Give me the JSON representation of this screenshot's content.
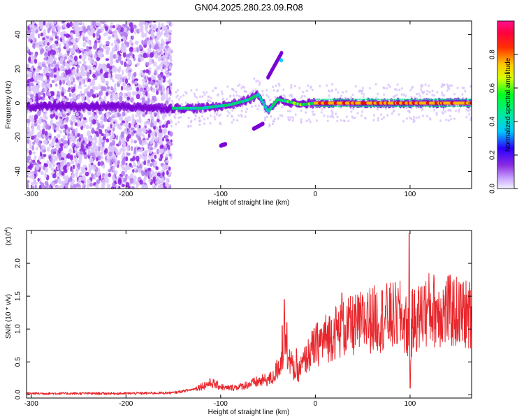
{
  "title": "GN04.2025.280.23.09.R08",
  "colors": {
    "snr_line": "#e8262b",
    "spec_dark": "#7a00d6",
    "spec_ridge": "#00d65a",
    "spec_peak": "#e01010"
  },
  "chart_data": [
    {
      "type": "heatmap",
      "name": "spectrogram",
      "xlabel": "Height of straight line (km)",
      "ylabel": "Frequency (Hz)",
      "xlim": [
        -305,
        165
      ],
      "ylim": [
        -50,
        48
      ],
      "xticks": [
        -300,
        -200,
        -100,
        0,
        100
      ],
      "yticks": [
        -40,
        -20,
        0,
        20,
        40
      ],
      "grid": false,
      "colorbar": {
        "label": "Normalized spectral amplitude",
        "ticks": [
          "0.0",
          "0.2",
          "0.4",
          "0.6",
          "0.8"
        ],
        "range": [
          0,
          1
        ],
        "colormap": "rainbow"
      },
      "ridge": [
        {
          "x": -305,
          "y": -2
        },
        {
          "x": -250,
          "y": -2
        },
        {
          "x": -200,
          "y": -2
        },
        {
          "x": -155,
          "y": -3
        },
        {
          "x": -120,
          "y": -3
        },
        {
          "x": -90,
          "y": -1
        },
        {
          "x": -70,
          "y": 2
        },
        {
          "x": -60,
          "y": 5
        },
        {
          "x": -50,
          "y": -5
        },
        {
          "x": -40,
          "y": 2
        },
        {
          "x": -30,
          "y": 1
        },
        {
          "x": -15,
          "y": -1
        },
        {
          "x": 0,
          "y": 0
        },
        {
          "x": 50,
          "y": 0
        },
        {
          "x": 100,
          "y": 0
        },
        {
          "x": 165,
          "y": 0
        }
      ],
      "side_branches": [
        [
          {
            "x": -50,
            "y": 15
          },
          {
            "x": -35,
            "y": 30
          }
        ],
        [
          {
            "x": -65,
            "y": -15
          },
          {
            "x": -55,
            "y": -12
          }
        ],
        [
          {
            "x": -95,
            "y": -24
          },
          {
            "x": -100,
            "y": -25
          }
        ]
      ]
    },
    {
      "type": "line",
      "name": "snr",
      "xlabel": "Height of straight line (km)",
      "ylabel": "SNR (10 * v/v)",
      "yscale_label": "(x10",
      "yscale_exp": "4",
      "yscale_close": ")",
      "xlim": [
        -305,
        165
      ],
      "ylim": [
        -0.05,
        2.5
      ],
      "xticks": [
        -300,
        -200,
        -100,
        0,
        100
      ],
      "yticks": [
        "0.0",
        "0.5",
        "1.0",
        "1.5",
        "2.0"
      ],
      "grid": false,
      "envelope": [
        {
          "x": -305,
          "y": 0.02
        },
        {
          "x": -200,
          "y": 0.02
        },
        {
          "x": -150,
          "y": 0.03
        },
        {
          "x": -130,
          "y": 0.08
        },
        {
          "x": -110,
          "y": 0.18
        },
        {
          "x": -95,
          "y": 0.1
        },
        {
          "x": -80,
          "y": 0.12
        },
        {
          "x": -60,
          "y": 0.2
        },
        {
          "x": -45,
          "y": 0.25
        },
        {
          "x": -35,
          "y": 0.55
        },
        {
          "x": -32,
          "y": 0.9
        },
        {
          "x": -28,
          "y": 0.55
        },
        {
          "x": -20,
          "y": 0.3
        },
        {
          "x": -10,
          "y": 0.55
        },
        {
          "x": 0,
          "y": 0.75
        },
        {
          "x": 20,
          "y": 0.95
        },
        {
          "x": 40,
          "y": 1.05
        },
        {
          "x": 60,
          "y": 1.15
        },
        {
          "x": 90,
          "y": 1.2
        },
        {
          "x": 98,
          "y": 1.0
        },
        {
          "x": 100,
          "y": 0.4
        },
        {
          "x": 102,
          "y": 1.1
        },
        {
          "x": 120,
          "y": 1.3
        },
        {
          "x": 150,
          "y": 1.25
        },
        {
          "x": 165,
          "y": 1.2
        }
      ],
      "spikes": [
        {
          "x": -35,
          "y": 1.05
        },
        {
          "x": -33,
          "y": 1.45
        },
        {
          "x": -30,
          "y": 1.1
        },
        {
          "x": -20,
          "y": 0.7
        },
        {
          "x": 10,
          "y": 1.1
        },
        {
          "x": 28,
          "y": 1.55
        },
        {
          "x": 55,
          "y": 1.4
        },
        {
          "x": 75,
          "y": 1.55
        },
        {
          "x": 85,
          "y": 1.5
        },
        {
          "x": 99,
          "y": 2.45
        },
        {
          "x": 100,
          "y": 0.1
        },
        {
          "x": 115,
          "y": 1.65
        },
        {
          "x": 140,
          "y": 1.8
        }
      ]
    }
  ]
}
